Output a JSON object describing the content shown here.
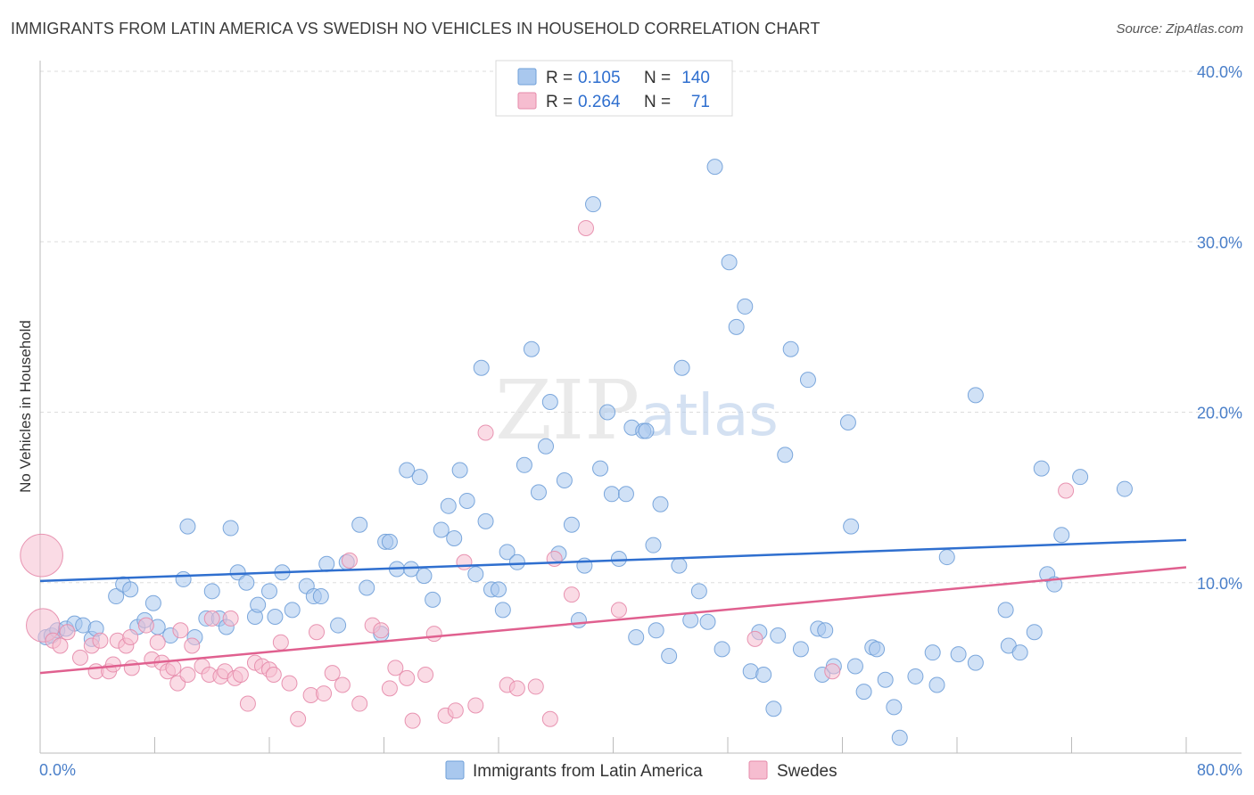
{
  "title": "IMMIGRANTS FROM LATIN AMERICA VS SWEDISH NO VEHICLES IN HOUSEHOLD CORRELATION CHART",
  "source": "Source: ZipAtlas.com",
  "watermark": {
    "zip": "ZIP",
    "atlas": "atlas"
  },
  "colors": {
    "blue_fill": "#a9c8ee",
    "blue_stroke": "#6f9fd8",
    "blue_line": "#2f6fcf",
    "pink_fill": "#f6bdd0",
    "pink_stroke": "#e58aaa",
    "pink_line": "#e0608f",
    "tick_text": "#4a7fc9",
    "grid": "#dddddd"
  },
  "legend_stats": [
    {
      "r_label": "R =",
      "r_value": "0.105",
      "n_label": "N =",
      "n_value": "140"
    },
    {
      "r_label": "R =",
      "r_value": "0.264",
      "n_label": "N =",
      "n_value": "71"
    }
  ],
  "chart_data": {
    "type": "scatter",
    "title": "IMMIGRANTS FROM LATIN AMERICA VS SWEDISH NO VEHICLES IN HOUSEHOLD CORRELATION CHART",
    "xlabel": "",
    "ylabel": "No Vehicles in Household",
    "xlim": [
      0,
      80
    ],
    "ylim": [
      0,
      40
    ],
    "x_ticks": [
      "0.0%",
      "80.0%"
    ],
    "y_ticks": [
      "10.0%",
      "20.0%",
      "30.0%",
      "40.0%"
    ],
    "y_tick_values": [
      10,
      20,
      30,
      40
    ],
    "grid": true,
    "legend_position": "bottom",
    "series": [
      {
        "name": "Immigrants from Latin America",
        "trend": [
          [
            0,
            10.1
          ],
          [
            80,
            12.5
          ]
        ],
        "points": [
          [
            0.4,
            6.8,
            1
          ],
          [
            0.8,
            6.9,
            1
          ],
          [
            1.2,
            7.2,
            1
          ],
          [
            1.8,
            7.3,
            1
          ],
          [
            2.4,
            7.6,
            1
          ],
          [
            3.0,
            7.5,
            1
          ],
          [
            3.6,
            6.7,
            1
          ],
          [
            3.9,
            7.3,
            1
          ],
          [
            5.3,
            9.2,
            1
          ],
          [
            5.8,
            9.9,
            1
          ],
          [
            6.3,
            9.6,
            1
          ],
          [
            6.8,
            7.4,
            1
          ],
          [
            7.3,
            7.8,
            1
          ],
          [
            7.9,
            8.8,
            1
          ],
          [
            8.2,
            7.4,
            1
          ],
          [
            9.1,
            6.9,
            1
          ],
          [
            10.0,
            10.2,
            1
          ],
          [
            10.3,
            13.3,
            1
          ],
          [
            10.8,
            6.8,
            1
          ],
          [
            11.6,
            7.9,
            1
          ],
          [
            12.0,
            9.5,
            1
          ],
          [
            12.5,
            7.9,
            1
          ],
          [
            13.0,
            7.4,
            1
          ],
          [
            13.3,
            13.2,
            1
          ],
          [
            13.8,
            10.6,
            1
          ],
          [
            14.4,
            10.0,
            1
          ],
          [
            15.0,
            8.0,
            1
          ],
          [
            15.2,
            8.7,
            1
          ],
          [
            16.0,
            9.5,
            1
          ],
          [
            16.4,
            8.0,
            1
          ],
          [
            16.9,
            10.6,
            1
          ],
          [
            17.6,
            8.4,
            1
          ],
          [
            18.6,
            9.8,
            1
          ],
          [
            19.1,
            9.2,
            1
          ],
          [
            19.6,
            9.2,
            1
          ],
          [
            20.0,
            11.1,
            1
          ],
          [
            20.8,
            7.5,
            1
          ],
          [
            21.4,
            11.2,
            1
          ],
          [
            22.3,
            13.4,
            1
          ],
          [
            22.8,
            9.7,
            1
          ],
          [
            23.8,
            7.0,
            1
          ],
          [
            24.1,
            12.4,
            1
          ],
          [
            24.4,
            12.4,
            1
          ],
          [
            24.9,
            10.8,
            1
          ],
          [
            25.6,
            16.6,
            1
          ],
          [
            25.9,
            10.8,
            1
          ],
          [
            26.5,
            16.2,
            1
          ],
          [
            26.8,
            10.4,
            1
          ],
          [
            27.4,
            9.0,
            1
          ],
          [
            28.0,
            13.1,
            1
          ],
          [
            28.5,
            14.5,
            1
          ],
          [
            28.9,
            12.6,
            1
          ],
          [
            29.3,
            16.6,
            1
          ],
          [
            29.8,
            14.8,
            1
          ],
          [
            30.4,
            10.5,
            1
          ],
          [
            30.8,
            22.6,
            1
          ],
          [
            31.1,
            13.6,
            1
          ],
          [
            31.5,
            9.6,
            1
          ],
          [
            32.0,
            9.6,
            1
          ],
          [
            32.3,
            8.4,
            1
          ],
          [
            32.6,
            11.8,
            1
          ],
          [
            33.3,
            11.2,
            1
          ],
          [
            33.8,
            16.9,
            1
          ],
          [
            34.3,
            23.7,
            1
          ],
          [
            34.8,
            15.3,
            1
          ],
          [
            35.3,
            18.0,
            1
          ],
          [
            35.6,
            20.6,
            1
          ],
          [
            36.2,
            11.7,
            1
          ],
          [
            36.6,
            16.0,
            1
          ],
          [
            37.1,
            13.4,
            1
          ],
          [
            37.6,
            7.8,
            1
          ],
          [
            38.0,
            11.0,
            1
          ],
          [
            38.6,
            32.2,
            1
          ],
          [
            39.1,
            16.7,
            1
          ],
          [
            39.6,
            20.0,
            1
          ],
          [
            39.9,
            15.2,
            1
          ],
          [
            40.4,
            11.4,
            1
          ],
          [
            40.9,
            15.2,
            1
          ],
          [
            41.3,
            19.1,
            1
          ],
          [
            41.6,
            6.8,
            1
          ],
          [
            42.1,
            18.9,
            1
          ],
          [
            42.3,
            18.9,
            1
          ],
          [
            42.8,
            12.2,
            1
          ],
          [
            43.0,
            7.2,
            1
          ],
          [
            43.3,
            14.6,
            1
          ],
          [
            43.9,
            5.7,
            1
          ],
          [
            44.6,
            11.0,
            1
          ],
          [
            44.8,
            22.6,
            1
          ],
          [
            45.4,
            7.8,
            1
          ],
          [
            46.0,
            9.5,
            1
          ],
          [
            46.6,
            7.7,
            1
          ],
          [
            47.1,
            34.4,
            1
          ],
          [
            47.6,
            6.1,
            1
          ],
          [
            48.1,
            28.8,
            1
          ],
          [
            48.6,
            25.0,
            1
          ],
          [
            49.2,
            26.2,
            1
          ],
          [
            49.6,
            4.8,
            1
          ],
          [
            50.2,
            7.1,
            1
          ],
          [
            50.5,
            4.6,
            1
          ],
          [
            51.2,
            2.6,
            1
          ],
          [
            51.5,
            6.9,
            1
          ],
          [
            52.0,
            17.5,
            1
          ],
          [
            52.4,
            23.7,
            1
          ],
          [
            53.1,
            6.1,
            1
          ],
          [
            53.6,
            21.9,
            1
          ],
          [
            54.3,
            7.3,
            1
          ],
          [
            54.6,
            4.6,
            1
          ],
          [
            54.8,
            7.2,
            1
          ],
          [
            55.4,
            5.1,
            1
          ],
          [
            56.4,
            19.4,
            1
          ],
          [
            56.6,
            13.3,
            1
          ],
          [
            56.9,
            5.1,
            1
          ],
          [
            57.5,
            3.6,
            1
          ],
          [
            58.1,
            6.2,
            1
          ],
          [
            58.4,
            6.1,
            1
          ],
          [
            59.0,
            4.3,
            1
          ],
          [
            59.6,
            2.7,
            1
          ],
          [
            60.0,
            0.9,
            1
          ],
          [
            61.1,
            4.5,
            1
          ],
          [
            62.3,
            5.9,
            1
          ],
          [
            62.6,
            4.0,
            1
          ],
          [
            63.3,
            11.5,
            1
          ],
          [
            64.1,
            5.8,
            1
          ],
          [
            65.3,
            21.0,
            1
          ],
          [
            65.3,
            5.3,
            1
          ],
          [
            67.4,
            8.4,
            1
          ],
          [
            67.6,
            6.3,
            1
          ],
          [
            68.4,
            5.9,
            1
          ],
          [
            69.4,
            7.1,
            1
          ],
          [
            69.9,
            16.7,
            1
          ],
          [
            70.3,
            10.5,
            1
          ],
          [
            70.8,
            9.9,
            1
          ],
          [
            71.3,
            12.8,
            1
          ],
          [
            72.6,
            16.2,
            1
          ],
          [
            75.7,
            15.5,
            1
          ]
        ]
      },
      {
        "name": "Swedes",
        "trend": [
          [
            0,
            4.7
          ],
          [
            80,
            10.9
          ]
        ],
        "points": [
          [
            0.1,
            11.6,
            2.8
          ],
          [
            0.2,
            7.5,
            2.2
          ],
          [
            0.9,
            6.6,
            1
          ],
          [
            1.4,
            6.3,
            1
          ],
          [
            1.9,
            7.1,
            1
          ],
          [
            2.8,
            5.6,
            1
          ],
          [
            3.6,
            6.3,
            1
          ],
          [
            3.9,
            4.8,
            1
          ],
          [
            4.2,
            6.6,
            1
          ],
          [
            4.8,
            4.8,
            1
          ],
          [
            5.1,
            5.2,
            1
          ],
          [
            5.4,
            6.6,
            1
          ],
          [
            6.0,
            6.3,
            1
          ],
          [
            6.3,
            6.8,
            1
          ],
          [
            6.4,
            5.0,
            1
          ],
          [
            7.4,
            7.5,
            1
          ],
          [
            7.8,
            5.5,
            1
          ],
          [
            8.2,
            6.5,
            1
          ],
          [
            8.5,
            5.3,
            1
          ],
          [
            8.9,
            4.8,
            1
          ],
          [
            9.3,
            5.0,
            1
          ],
          [
            9.6,
            4.1,
            1
          ],
          [
            9.8,
            7.2,
            1
          ],
          [
            10.3,
            4.6,
            1
          ],
          [
            10.6,
            6.3,
            1
          ],
          [
            11.3,
            5.1,
            1
          ],
          [
            11.8,
            4.6,
            1
          ],
          [
            12.0,
            7.9,
            1
          ],
          [
            12.6,
            4.5,
            1
          ],
          [
            12.9,
            4.8,
            1
          ],
          [
            13.3,
            7.9,
            1
          ],
          [
            13.6,
            4.4,
            1
          ],
          [
            14.0,
            4.6,
            1
          ],
          [
            14.5,
            2.9,
            1
          ],
          [
            15.0,
            5.3,
            1
          ],
          [
            15.5,
            5.1,
            1
          ],
          [
            16.0,
            4.9,
            1
          ],
          [
            16.3,
            4.6,
            1
          ],
          [
            16.8,
            6.5,
            1
          ],
          [
            17.4,
            4.1,
            1
          ],
          [
            18.0,
            2.0,
            1
          ],
          [
            18.9,
            3.4,
            1
          ],
          [
            19.3,
            7.1,
            1
          ],
          [
            19.8,
            3.5,
            1
          ],
          [
            20.4,
            4.7,
            1
          ],
          [
            21.1,
            4.0,
            1
          ],
          [
            21.6,
            11.3,
            1
          ],
          [
            22.3,
            2.9,
            1
          ],
          [
            23.2,
            7.5,
            1
          ],
          [
            23.8,
            7.2,
            1
          ],
          [
            24.4,
            3.8,
            1
          ],
          [
            24.8,
            5.0,
            1
          ],
          [
            25.6,
            4.4,
            1
          ],
          [
            26.0,
            1.9,
            1
          ],
          [
            26.9,
            4.6,
            1
          ],
          [
            27.5,
            7.0,
            1
          ],
          [
            28.3,
            2.2,
            1
          ],
          [
            29.0,
            2.5,
            1
          ],
          [
            29.6,
            11.2,
            1
          ],
          [
            30.4,
            2.8,
            1
          ],
          [
            31.1,
            18.8,
            1
          ],
          [
            32.6,
            4.0,
            1
          ],
          [
            33.3,
            3.8,
            1
          ],
          [
            34.6,
            3.9,
            1
          ],
          [
            35.6,
            2.0,
            1
          ],
          [
            35.9,
            11.4,
            1
          ],
          [
            37.1,
            9.3,
            1
          ],
          [
            38.1,
            30.8,
            1
          ],
          [
            40.4,
            8.4,
            1
          ],
          [
            49.9,
            6.7,
            1
          ],
          [
            55.3,
            4.8,
            1
          ],
          [
            71.6,
            15.4,
            1
          ]
        ]
      }
    ]
  },
  "bottom_legend": [
    {
      "label": "Immigrants from Latin America"
    },
    {
      "label": "Swedes"
    }
  ]
}
